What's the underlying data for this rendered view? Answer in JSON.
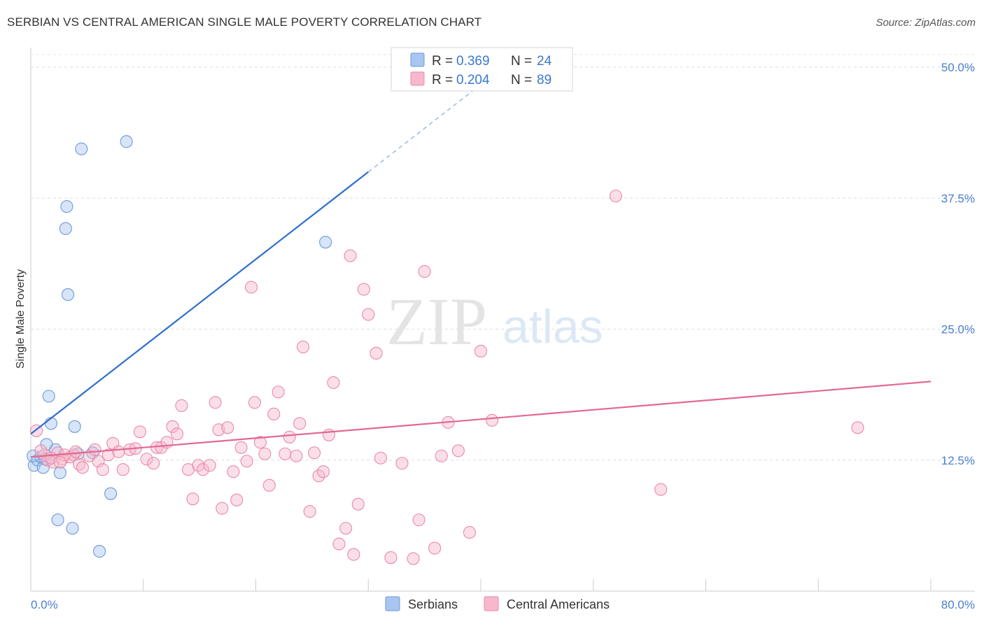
{
  "header": {
    "title": "SERBIAN VS CENTRAL AMERICAN SINGLE MALE POVERTY CORRELATION CHART",
    "source": "Source: ZipAtlas.com"
  },
  "watermark": {
    "zip": "ZIP",
    "atlas": "atlas"
  },
  "legend_top": {
    "r_label": "R =",
    "n_label": "N =",
    "rows": [
      {
        "r": "0.369",
        "n": "24",
        "color": "#a9c6f0"
      },
      {
        "r": "0.204",
        "n": "89",
        "color": "#f7b8cb"
      }
    ]
  },
  "legend_bottom": [
    {
      "label": "Serbians",
      "color": "#a9c6f0"
    },
    {
      "label": "Central Americans",
      "color": "#f7b8cb"
    }
  ],
  "chart_data": {
    "type": "scatter",
    "title": "SERBIAN VS CENTRAL AMERICAN SINGLE MALE POVERTY CORRELATION CHART",
    "xlabel": "",
    "ylabel": "Single Male Poverty",
    "xlim": [
      0,
      80
    ],
    "ylim": [
      0,
      50
    ],
    "x_tick_labels": [
      "0.0%",
      "80.0%"
    ],
    "y_ticks": [
      12.5,
      25.0,
      37.5,
      50.0
    ],
    "y_tick_labels": [
      "12.5%",
      "25.0%",
      "37.5%",
      "50.0%"
    ],
    "grid": true,
    "legend_position": "top-center",
    "series": [
      {
        "name": "Serbians",
        "color": "#a9c6f0",
        "stroke": "#6a9ad8",
        "line_color": "#2f6fcc",
        "r": 0.369,
        "n": 24,
        "trend": {
          "x": [
            0,
            30
          ],
          "y": [
            15.0,
            40.0
          ],
          "dashed_to": [
            42,
            50.0
          ]
        },
        "points": [
          [
            0.3,
            12.0
          ],
          [
            0.6,
            12.5
          ],
          [
            0.9,
            12.8
          ],
          [
            1.1,
            11.8
          ],
          [
            1.3,
            12.6
          ],
          [
            1.4,
            14.0
          ],
          [
            1.6,
            18.6
          ],
          [
            1.8,
            16.0
          ],
          [
            2.2,
            13.5
          ],
          [
            2.6,
            11.3
          ],
          [
            2.4,
            6.8
          ],
          [
            3.2,
            36.7
          ],
          [
            3.1,
            34.6
          ],
          [
            3.3,
            28.3
          ],
          [
            3.7,
            6.0
          ],
          [
            3.9,
            15.7
          ],
          [
            4.2,
            13.1
          ],
          [
            4.5,
            42.2
          ],
          [
            5.5,
            13.2
          ],
          [
            6.1,
            3.8
          ],
          [
            7.1,
            9.3
          ],
          [
            8.5,
            42.9
          ],
          [
            26.2,
            33.3
          ],
          [
            0.2,
            12.9
          ]
        ]
      },
      {
        "name": "Central Americans",
        "color": "#f7b8cb",
        "stroke": "#e88aa8",
        "line_color": "#e2698f",
        "r": 0.204,
        "n": 89,
        "trend": {
          "x": [
            0,
            80
          ],
          "y": [
            12.8,
            20.0
          ]
        },
        "points": [
          [
            0.5,
            15.3
          ],
          [
            1.2,
            13.0
          ],
          [
            1.5,
            12.5
          ],
          [
            2.0,
            12.3
          ],
          [
            2.4,
            13.2
          ],
          [
            2.8,
            12.6
          ],
          [
            3.5,
            12.8
          ],
          [
            3.8,
            13.0
          ],
          [
            4.3,
            12.1
          ],
          [
            4.6,
            11.8
          ],
          [
            5.2,
            12.9
          ],
          [
            5.7,
            13.5
          ],
          [
            6.0,
            12.4
          ],
          [
            6.4,
            11.6
          ],
          [
            6.9,
            13.0
          ],
          [
            7.3,
            14.1
          ],
          [
            7.8,
            13.3
          ],
          [
            8.2,
            11.6
          ],
          [
            8.8,
            13.5
          ],
          [
            9.3,
            13.6
          ],
          [
            9.7,
            15.2
          ],
          [
            10.3,
            12.6
          ],
          [
            10.9,
            12.2
          ],
          [
            11.2,
            13.7
          ],
          [
            11.6,
            13.7
          ],
          [
            12.1,
            14.2
          ],
          [
            12.6,
            15.7
          ],
          [
            13.0,
            15.0
          ],
          [
            13.4,
            17.7
          ],
          [
            14.0,
            11.6
          ],
          [
            14.4,
            8.8
          ],
          [
            14.9,
            12.0
          ],
          [
            15.3,
            11.6
          ],
          [
            15.9,
            12.0
          ],
          [
            16.4,
            18.0
          ],
          [
            16.7,
            15.4
          ],
          [
            17.0,
            7.9
          ],
          [
            17.5,
            15.6
          ],
          [
            18.0,
            11.4
          ],
          [
            18.3,
            8.7
          ],
          [
            18.7,
            13.7
          ],
          [
            19.2,
            12.4
          ],
          [
            19.6,
            29.0
          ],
          [
            19.9,
            18.0
          ],
          [
            20.4,
            14.2
          ],
          [
            20.8,
            13.1
          ],
          [
            21.2,
            10.1
          ],
          [
            21.6,
            16.9
          ],
          [
            22.0,
            19.0
          ],
          [
            22.6,
            13.1
          ],
          [
            23.0,
            14.7
          ],
          [
            23.6,
            12.9
          ],
          [
            23.9,
            16.0
          ],
          [
            24.2,
            23.3
          ],
          [
            24.8,
            7.6
          ],
          [
            25.2,
            13.2
          ],
          [
            25.6,
            11.0
          ],
          [
            26.0,
            11.4
          ],
          [
            26.5,
            14.9
          ],
          [
            26.9,
            19.9
          ],
          [
            27.4,
            4.5
          ],
          [
            28.0,
            6.0
          ],
          [
            28.4,
            32.0
          ],
          [
            28.7,
            3.5
          ],
          [
            29.1,
            8.3
          ],
          [
            29.6,
            28.8
          ],
          [
            30.0,
            26.4
          ],
          [
            30.7,
            22.7
          ],
          [
            31.1,
            12.7
          ],
          [
            32.0,
            3.2
          ],
          [
            33.0,
            12.2
          ],
          [
            34.0,
            3.1
          ],
          [
            34.5,
            6.8
          ],
          [
            35.0,
            30.5
          ],
          [
            35.9,
            4.1
          ],
          [
            36.5,
            12.9
          ],
          [
            37.1,
            16.1
          ],
          [
            38.0,
            13.4
          ],
          [
            39.0,
            5.6
          ],
          [
            40.0,
            22.9
          ],
          [
            41.0,
            16.3
          ],
          [
            52.0,
            37.7
          ],
          [
            56.0,
            9.7
          ],
          [
            73.5,
            15.6
          ],
          [
            3.0,
            13.0
          ],
          [
            1.8,
            12.7
          ],
          [
            0.9,
            13.4
          ],
          [
            2.6,
            12.3
          ],
          [
            4.0,
            13.3
          ]
        ]
      }
    ]
  }
}
